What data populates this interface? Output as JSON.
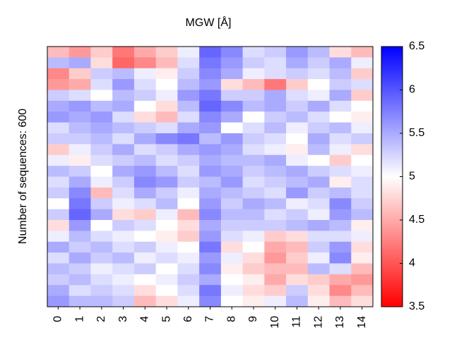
{
  "chart_data": {
    "type": "heatmap",
    "title": "MGW [Å]",
    "ylabel": "Number of sequences: 600",
    "categories": [
      "0",
      "1",
      "2",
      "3",
      "4",
      "5",
      "6",
      "7",
      "8",
      "9",
      "10",
      "11",
      "12",
      "13",
      "14"
    ],
    "colormap": [
      "#ff0000",
      "#ffffff",
      "#0000ff"
    ],
    "zlim": [
      3.5,
      6.5
    ],
    "zticks": [
      3.5,
      4,
      4.5,
      5,
      5.5,
      6,
      6.5
    ],
    "z": [
      [
        4.6,
        4.4,
        4.7,
        4.2,
        4.5,
        4.7,
        5.1,
        5.9,
        5.7,
        5.2,
        5.3,
        5.6,
        5.4,
        4.8,
        4.6
      ],
      [
        5.4,
        5.5,
        4.8,
        4.1,
        4.3,
        4.6,
        5.2,
        5.8,
        5.6,
        5.3,
        5.2,
        5.5,
        5.3,
        5.5,
        5.1
      ],
      [
        4.3,
        4.7,
        5.3,
        5.4,
        5.1,
        4.9,
        5.3,
        5.7,
        5.5,
        5.1,
        5.2,
        5.3,
        5.2,
        5.4,
        4.7
      ],
      [
        4.4,
        4.5,
        5.2,
        5.6,
        5.2,
        5.0,
        5.4,
        5.6,
        4.8,
        4.6,
        4.2,
        4.7,
        5.0,
        5.3,
        5.2
      ],
      [
        5.3,
        5.2,
        5.0,
        5.4,
        5.3,
        5.1,
        5.6,
        5.8,
        5.3,
        5.3,
        5.5,
        5.2,
        5.1,
        5.5,
        4.7
      ],
      [
        5.5,
        5.6,
        5.4,
        5.5,
        5.0,
        4.8,
        5.4,
        5.9,
        5.7,
        5.4,
        5.5,
        5.3,
        5.5,
        5.2,
        5.0
      ],
      [
        5.6,
        5.5,
        5.6,
        5.2,
        4.8,
        4.6,
        5.2,
        5.7,
        5.5,
        5.0,
        5.3,
        5.4,
        5.2,
        5.0,
        4.9
      ],
      [
        5.2,
        5.4,
        5.5,
        5.4,
        5.3,
        5.2,
        5.5,
        5.6,
        5.0,
        5.2,
        5.4,
        5.1,
        5.3,
        5.4,
        5.1
      ],
      [
        5.3,
        5.3,
        5.4,
        5.2,
        5.5,
        5.7,
        5.8,
        5.4,
        5.6,
        5.3,
        5.2,
        5.0,
        5.5,
        5.2,
        5.3
      ],
      [
        4.7,
        5.1,
        5.3,
        5.5,
        5.2,
        5.3,
        5.5,
        5.6,
        5.5,
        5.2,
        5.1,
        4.9,
        5.4,
        5.1,
        4.8
      ],
      [
        5.1,
        4.9,
        5.2,
        5.3,
        5.4,
        5.2,
        5.3,
        5.5,
        5.4,
        5.4,
        5.5,
        5.1,
        5.0,
        4.7,
        5.0
      ],
      [
        5.4,
        5.3,
        5.0,
        5.5,
        5.6,
        5.4,
        5.2,
        5.6,
        5.5,
        5.3,
        5.4,
        5.5,
        5.3,
        5.2,
        5.1
      ],
      [
        5.2,
        5.5,
        5.1,
        5.3,
        5.7,
        5.6,
        5.3,
        5.4,
        5.6,
        5.2,
        5.3,
        5.4,
        5.5,
        4.9,
        5.2
      ],
      [
        5.3,
        5.7,
        4.6,
        5.2,
        5.5,
        5.3,
        5.1,
        5.5,
        5.4,
        5.3,
        5.2,
        5.6,
        5.3,
        5.4,
        5.2
      ],
      [
        5.0,
        5.8,
        5.3,
        5.1,
        5.2,
        5.4,
        5.0,
        5.6,
        5.3,
        5.5,
        5.4,
        5.1,
        5.2,
        5.7,
        5.3
      ],
      [
        5.3,
        5.9,
        5.5,
        4.8,
        4.7,
        5.1,
        4.6,
        5.7,
        5.4,
        5.4,
        5.2,
        5.3,
        5.1,
        5.6,
        5.4
      ],
      [
        4.8,
        5.6,
        5.0,
        5.3,
        5.2,
        5.0,
        4.8,
        5.5,
        5.3,
        5.3,
        5.3,
        5.4,
        5.5,
        5.4,
        4.9
      ],
      [
        5.1,
        5.4,
        5.2,
        5.1,
        5.0,
        4.9,
        4.7,
        5.6,
        5.2,
        5.1,
        4.7,
        4.8,
        5.2,
        5.2,
        5.1
      ],
      [
        5.5,
        5.3,
        5.4,
        5.2,
        5.3,
        5.1,
        5.0,
        5.8,
        4.8,
        5.0,
        4.5,
        4.6,
        5.3,
        5.6,
        4.8
      ],
      [
        5.2,
        5.5,
        5.3,
        5.4,
        5.1,
        5.2,
        5.1,
        5.6,
        5.1,
        4.8,
        4.4,
        4.7,
        5.1,
        5.7,
        4.9
      ],
      [
        5.4,
        5.3,
        5.1,
        5.2,
        5.3,
        5.0,
        5.2,
        5.7,
        4.9,
        4.7,
        4.6,
        4.6,
        5.4,
        5.2,
        4.6
      ],
      [
        5.3,
        5.4,
        5.2,
        5.1,
        5.0,
        5.1,
        5.3,
        5.5,
        5.0,
        4.9,
        4.5,
        4.8,
        4.7,
        4.5,
        4.4
      ],
      [
        5.5,
        5.2,
        5.3,
        5.2,
        4.8,
        5.0,
        5.2,
        5.8,
        5.1,
        4.8,
        4.7,
        5.3,
        4.8,
        4.3,
        4.6
      ],
      [
        5.6,
        5.4,
        5.4,
        5.3,
        4.6,
        4.8,
        5.1,
        5.7,
        5.0,
        4.9,
        5.1,
        5.4,
        4.9,
        4.6,
        4.8
      ]
    ]
  }
}
